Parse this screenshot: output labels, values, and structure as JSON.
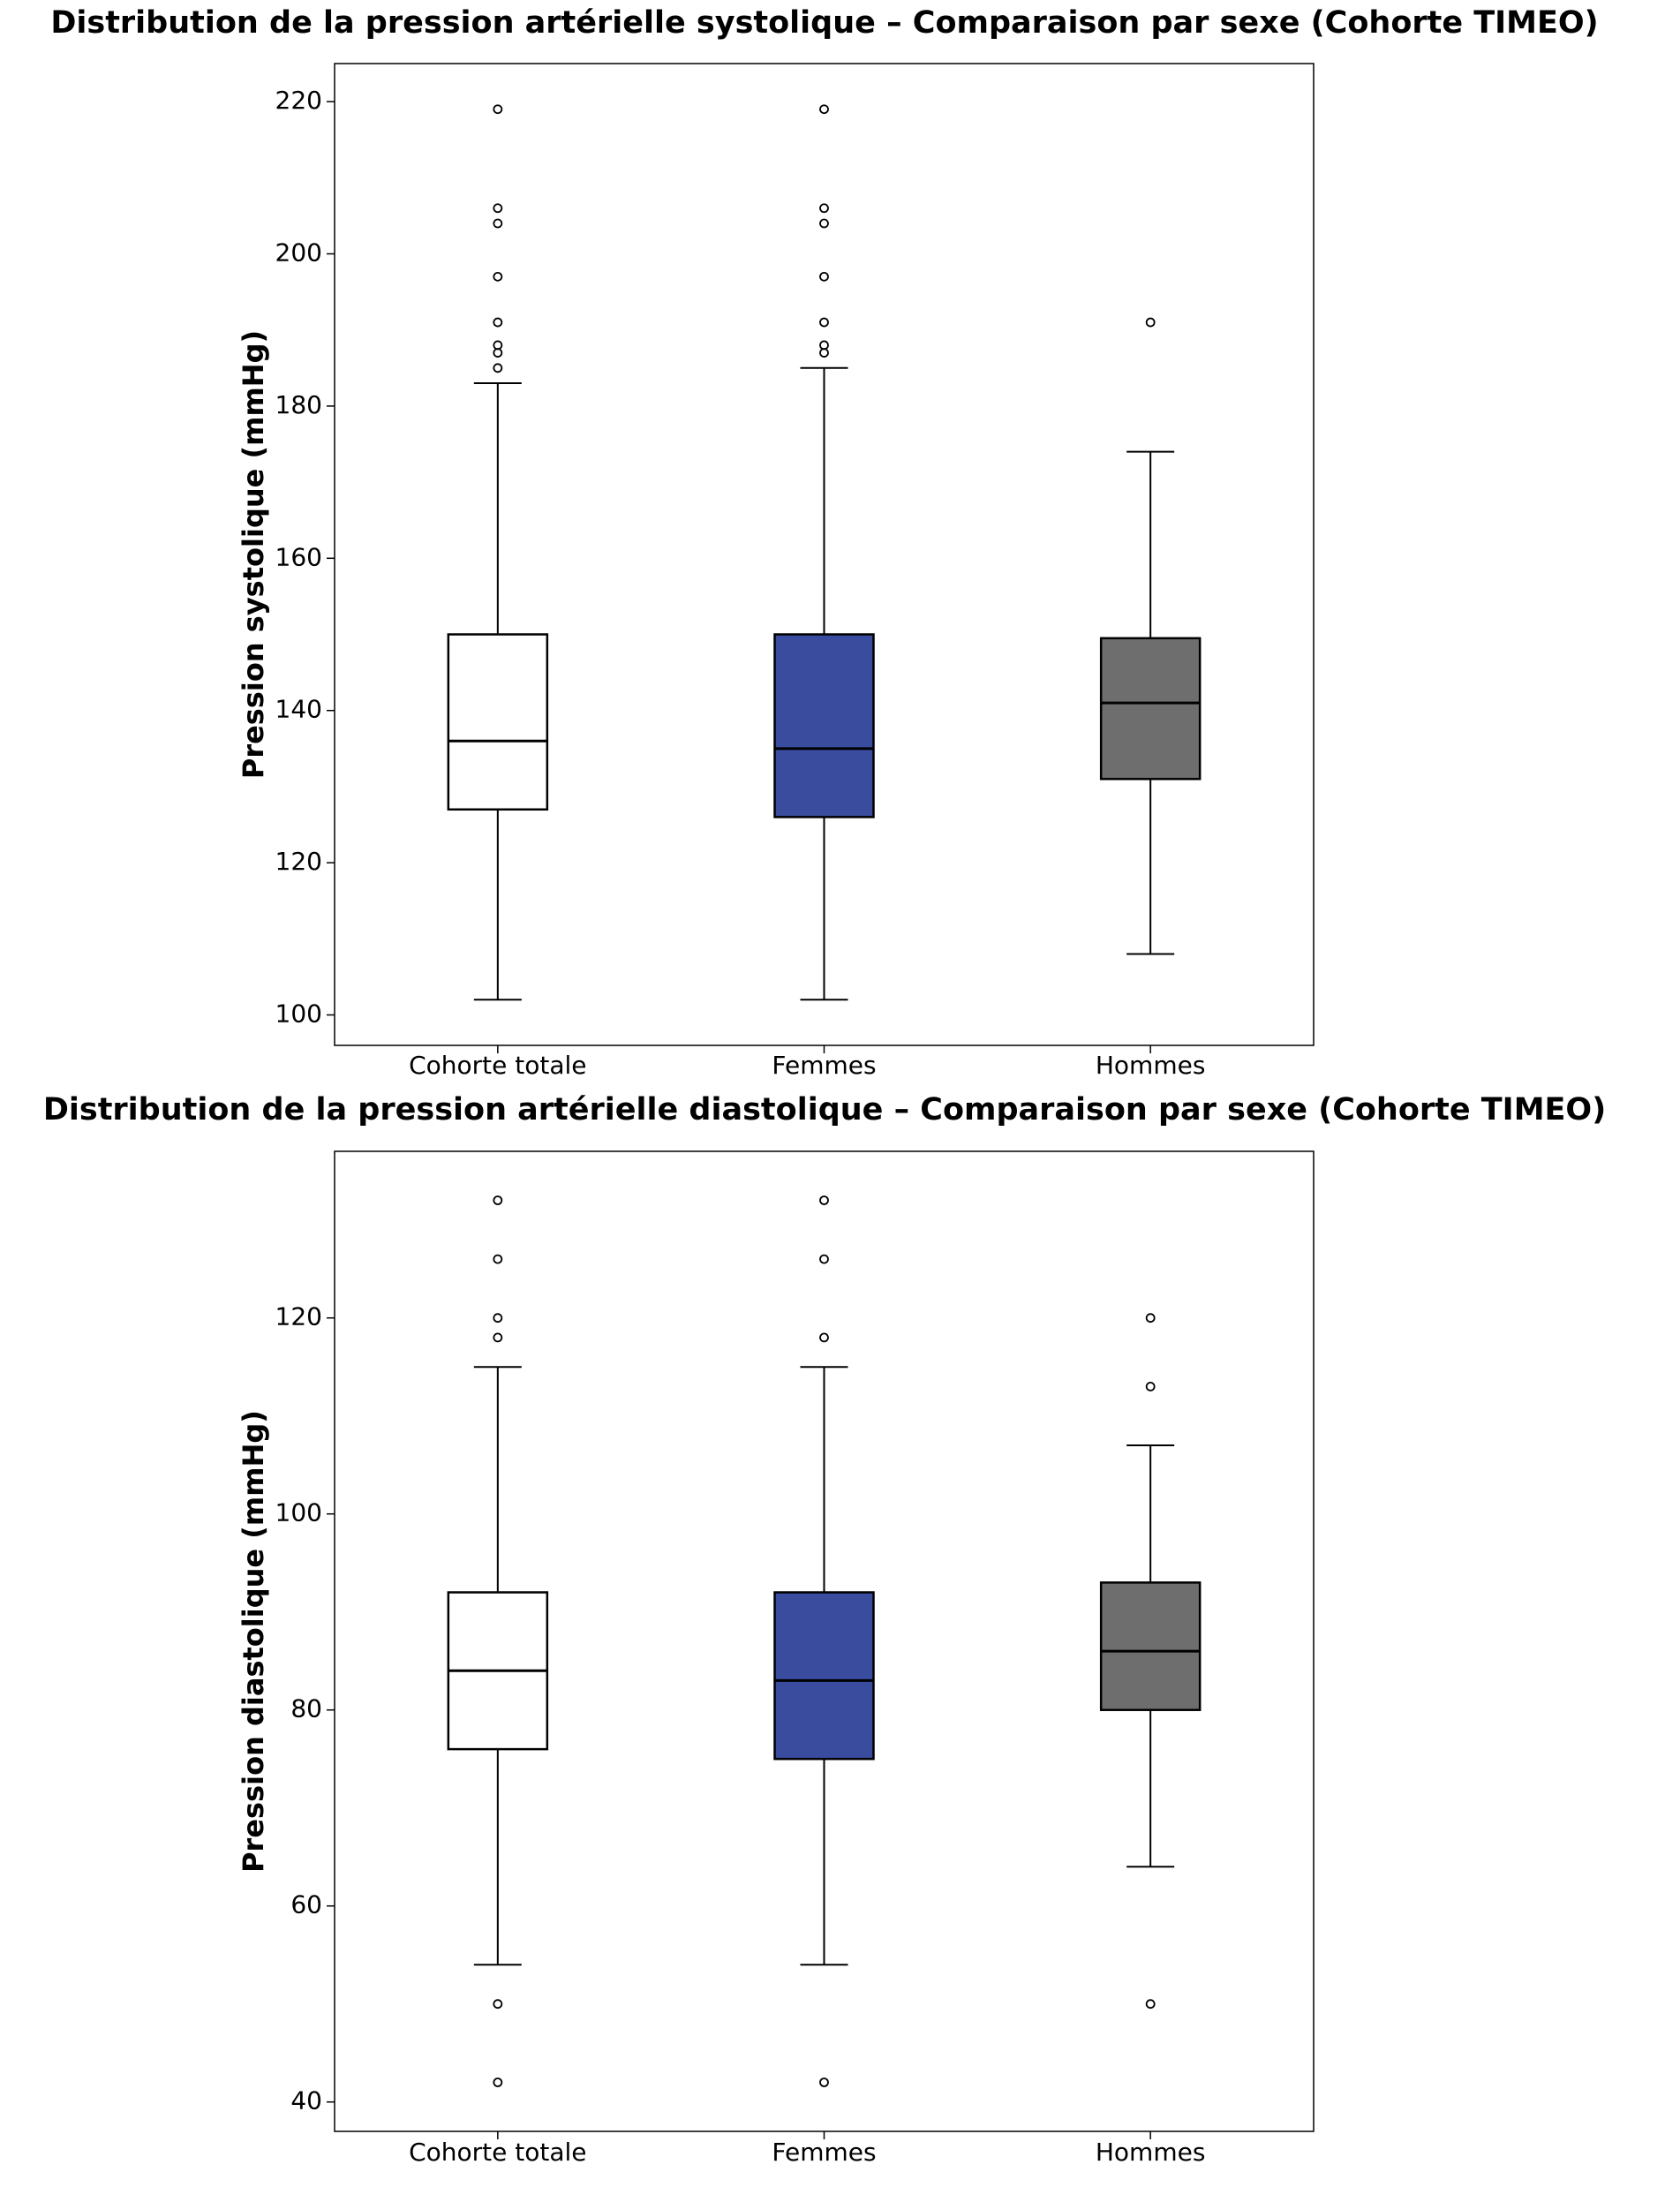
{
  "chart_data": [
    {
      "type": "box",
      "title": "Distribution de la pression artérielle systolique – Comparaison par sexe (Cohorte TIMEO)",
      "ylabel": "Pression systolique (mmHg)",
      "categories": [
        "Cohorte totale",
        "Femmes",
        "Hommes"
      ],
      "boxes": [
        {
          "color": "#ffffff",
          "whislo": 102,
          "q1": 127,
          "med": 136,
          "q3": 150,
          "whishi": 183,
          "fliers": [
            219,
            206,
            204,
            197,
            191,
            188,
            187,
            185
          ]
        },
        {
          "color": "#3a4c9e",
          "whislo": 102,
          "q1": 126,
          "med": 135,
          "q3": 150,
          "whishi": 185,
          "fliers": [
            219,
            206,
            204,
            197,
            191,
            188,
            187
          ]
        },
        {
          "color": "#6e6e6e",
          "whislo": 108,
          "q1": 131,
          "med": 141,
          "q3": 149.5,
          "whishi": 174,
          "fliers": [
            191
          ]
        }
      ],
      "ylim": [
        96,
        225
      ],
      "yticks": [
        100,
        120,
        140,
        160,
        180,
        200,
        220
      ]
    },
    {
      "type": "box",
      "title": "Distribution de la pression artérielle diastolique – Comparaison par sexe (Cohorte TIMEO)",
      "ylabel": "Pression diastolique (mmHg)",
      "categories": [
        "Cohorte totale",
        "Femmes",
        "Hommes"
      ],
      "boxes": [
        {
          "color": "#ffffff",
          "whislo": 54,
          "q1": 76,
          "med": 84,
          "q3": 92,
          "whishi": 115,
          "fliers": [
            132,
            126,
            120,
            118,
            50,
            42
          ]
        },
        {
          "color": "#3a4c9e",
          "whislo": 54,
          "q1": 75,
          "med": 83,
          "q3": 92,
          "whishi": 115,
          "fliers": [
            132,
            126,
            118,
            42
          ]
        },
        {
          "color": "#6e6e6e",
          "whislo": 64,
          "q1": 80,
          "med": 86,
          "q3": 93,
          "whishi": 107,
          "fliers": [
            120,
            113,
            50
          ]
        }
      ],
      "ylim": [
        37,
        137
      ],
      "yticks": [
        40,
        60,
        80,
        100,
        120
      ]
    }
  ]
}
